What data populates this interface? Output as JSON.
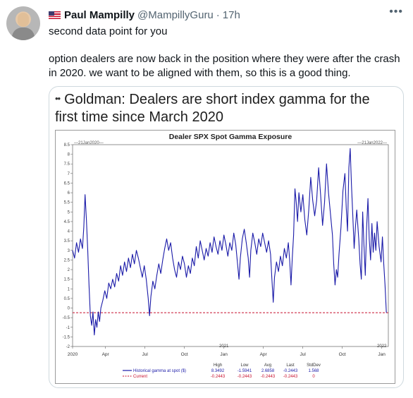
{
  "tweet": {
    "author_name": "Paul Mampilly",
    "author_handle": "@MampillyGuru",
    "separator": "·",
    "time": "17h",
    "more_icon": "more-horizontal-icon",
    "text_line1": "second data point for you",
    "text_body": "option dealers are now back in the position where they were after the crash in 2020. we want to be aligned with them, so this is a good thing."
  },
  "media": {
    "headline_prefix": "••",
    "headline": "Goldman: Dealers are short index gamma for the first time since March 2020"
  },
  "chart_data": {
    "type": "line",
    "title": "Dealer SPX Spot Gamma Exposure",
    "range_label_left": "21Jan2020",
    "range_label_right": "21Jan2022",
    "ylim": [
      -2,
      8.5
    ],
    "yticks": [
      "8.5",
      "8",
      "7.5",
      "7",
      "6.5",
      "6",
      "5.5",
      "5",
      "4.5",
      "4",
      "3.5",
      "3",
      "2.5",
      "2",
      "1.5",
      "1",
      "0.5",
      "0",
      "-0.5",
      "-1",
      "-1.5",
      "-2"
    ],
    "xticks": [
      "2020",
      "Apr",
      "Jul",
      "Oct",
      "Jan",
      "Apr",
      "Jul",
      "Oct",
      "Jan"
    ],
    "xticks_sub": [
      "",
      "",
      "",
      "",
      "2021",
      "",
      "",
      "",
      "2022"
    ],
    "xtick_months": [
      0,
      2.5,
      5.5,
      8.5,
      11.5,
      14.5,
      17.5,
      20.5,
      23.5
    ],
    "x_end_month": 24,
    "series": [
      {
        "name": "Historical gamma at spot ($)",
        "color": "#1a1aa8",
        "points": [
          [
            0,
            3.0
          ],
          [
            0.15,
            2.6
          ],
          [
            0.3,
            3.4
          ],
          [
            0.45,
            2.9
          ],
          [
            0.6,
            3.6
          ],
          [
            0.75,
            3.1
          ],
          [
            0.85,
            4.2
          ],
          [
            0.95,
            5.9
          ],
          [
            1.05,
            4.6
          ],
          [
            1.15,
            3.0
          ],
          [
            1.25,
            1.2
          ],
          [
            1.35,
            -0.4
          ],
          [
            1.45,
            -0.9
          ],
          [
            1.55,
            -0.2
          ],
          [
            1.65,
            -1.4
          ],
          [
            1.75,
            -0.6
          ],
          [
            1.85,
            -1.0
          ],
          [
            1.95,
            -0.2
          ],
          [
            2.05,
            -0.7
          ],
          [
            2.15,
            0.0
          ],
          [
            2.3,
            0.4
          ],
          [
            2.45,
            0.9
          ],
          [
            2.6,
            0.5
          ],
          [
            2.75,
            1.3
          ],
          [
            2.9,
            1.0
          ],
          [
            3.05,
            1.5
          ],
          [
            3.2,
            1.1
          ],
          [
            3.35,
            1.8
          ],
          [
            3.5,
            1.4
          ],
          [
            3.65,
            2.2
          ],
          [
            3.8,
            1.7
          ],
          [
            3.95,
            2.4
          ],
          [
            4.1,
            1.9
          ],
          [
            4.25,
            2.6
          ],
          [
            4.4,
            2.1
          ],
          [
            4.55,
            2.8
          ],
          [
            4.7,
            2.3
          ],
          [
            4.85,
            3.0
          ],
          [
            5.0,
            2.6
          ],
          [
            5.15,
            2.1
          ],
          [
            5.3,
            1.6
          ],
          [
            5.45,
            2.2
          ],
          [
            5.6,
            1.5
          ],
          [
            5.75,
            0.5
          ],
          [
            5.85,
            -0.4
          ],
          [
            5.95,
            0.6
          ],
          [
            6.1,
            1.4
          ],
          [
            6.25,
            1.0
          ],
          [
            6.4,
            1.7
          ],
          [
            6.55,
            2.3
          ],
          [
            6.7,
            1.8
          ],
          [
            6.85,
            2.5
          ],
          [
            7.0,
            3.1
          ],
          [
            7.15,
            3.6
          ],
          [
            7.3,
            3.0
          ],
          [
            7.45,
            3.4
          ],
          [
            7.6,
            2.6
          ],
          [
            7.75,
            2.0
          ],
          [
            7.9,
            1.6
          ],
          [
            8.05,
            2.4
          ],
          [
            8.2,
            2.0
          ],
          [
            8.35,
            2.7
          ],
          [
            8.5,
            2.3
          ],
          [
            8.65,
            1.6
          ],
          [
            8.8,
            2.2
          ],
          [
            8.95,
            1.8
          ],
          [
            9.1,
            2.6
          ],
          [
            9.25,
            2.2
          ],
          [
            9.4,
            3.2
          ],
          [
            9.55,
            2.6
          ],
          [
            9.7,
            3.5
          ],
          [
            9.85,
            3.0
          ],
          [
            10.0,
            2.5
          ],
          [
            10.15,
            3.1
          ],
          [
            10.3,
            2.7
          ],
          [
            10.45,
            3.4
          ],
          [
            10.6,
            2.9
          ],
          [
            10.75,
            3.7
          ],
          [
            10.9,
            3.2
          ],
          [
            11.05,
            2.8
          ],
          [
            11.2,
            3.5
          ],
          [
            11.35,
            3.0
          ],
          [
            11.5,
            3.8
          ],
          [
            11.65,
            3.3
          ],
          [
            11.8,
            2.7
          ],
          [
            11.95,
            3.4
          ],
          [
            12.1,
            3.0
          ],
          [
            12.25,
            3.9
          ],
          [
            12.4,
            3.3
          ],
          [
            12.55,
            2.2
          ],
          [
            12.65,
            1.5
          ],
          [
            12.75,
            2.6
          ],
          [
            12.9,
            3.6
          ],
          [
            13.05,
            4.1
          ],
          [
            13.2,
            3.4
          ],
          [
            13.35,
            2.6
          ],
          [
            13.45,
            1.6
          ],
          [
            13.55,
            3.0
          ],
          [
            13.7,
            3.9
          ],
          [
            13.85,
            3.4
          ],
          [
            14.0,
            2.8
          ],
          [
            14.15,
            3.6
          ],
          [
            14.3,
            3.2
          ],
          [
            14.45,
            3.9
          ],
          [
            14.6,
            3.4
          ],
          [
            14.75,
            2.9
          ],
          [
            14.9,
            3.5
          ],
          [
            15.05,
            2.8
          ],
          [
            15.15,
            1.5
          ],
          [
            15.25,
            0.3
          ],
          [
            15.35,
            1.6
          ],
          [
            15.5,
            2.4
          ],
          [
            15.65,
            1.9
          ],
          [
            15.8,
            2.7
          ],
          [
            15.95,
            2.2
          ],
          [
            16.1,
            3.1
          ],
          [
            16.25,
            2.6
          ],
          [
            16.4,
            3.4
          ],
          [
            16.5,
            2.5
          ],
          [
            16.6,
            1.2
          ],
          [
            16.7,
            2.6
          ],
          [
            16.8,
            3.8
          ],
          [
            16.9,
            6.2
          ],
          [
            17.0,
            5.5
          ],
          [
            17.1,
            4.5
          ],
          [
            17.2,
            6.0
          ],
          [
            17.35,
            5.0
          ],
          [
            17.5,
            5.9
          ],
          [
            17.65,
            4.6
          ],
          [
            17.8,
            3.8
          ],
          [
            17.95,
            5.1
          ],
          [
            18.1,
            6.8
          ],
          [
            18.25,
            5.6
          ],
          [
            18.4,
            4.8
          ],
          [
            18.55,
            5.6
          ],
          [
            18.7,
            7.3
          ],
          [
            18.85,
            5.9
          ],
          [
            19.0,
            4.3
          ],
          [
            19.15,
            5.5
          ],
          [
            19.3,
            7.5
          ],
          [
            19.45,
            6.0
          ],
          [
            19.6,
            4.9
          ],
          [
            19.75,
            3.8
          ],
          [
            19.85,
            2.3
          ],
          [
            19.95,
            1.2
          ],
          [
            20.05,
            2.0
          ],
          [
            20.15,
            1.6
          ],
          [
            20.25,
            2.8
          ],
          [
            20.4,
            4.2
          ],
          [
            20.55,
            6.1
          ],
          [
            20.7,
            7.0
          ],
          [
            20.8,
            5.2
          ],
          [
            20.9,
            4.0
          ],
          [
            21.0,
            7.3
          ],
          [
            21.1,
            8.3
          ],
          [
            21.2,
            6.4
          ],
          [
            21.3,
            4.8
          ],
          [
            21.4,
            3.1
          ],
          [
            21.5,
            4.2
          ],
          [
            21.6,
            5.1
          ],
          [
            21.75,
            3.6
          ],
          [
            21.85,
            2.3
          ],
          [
            21.95,
            1.5
          ],
          [
            22.05,
            5.0
          ],
          [
            22.15,
            3.2
          ],
          [
            22.25,
            1.7
          ],
          [
            22.35,
            4.2
          ],
          [
            22.45,
            5.7
          ],
          [
            22.55,
            3.6
          ],
          [
            22.65,
            2.5
          ],
          [
            22.75,
            4.4
          ],
          [
            22.85,
            2.9
          ],
          [
            22.95,
            3.9
          ],
          [
            23.05,
            3.0
          ],
          [
            23.15,
            4.5
          ],
          [
            23.3,
            3.2
          ],
          [
            23.45,
            2.4
          ],
          [
            23.55,
            3.7
          ],
          [
            23.65,
            2.3
          ],
          [
            23.75,
            1.2
          ],
          [
            23.85,
            -0.24
          ]
        ]
      },
      {
        "name": "Current",
        "color": "#c8102e",
        "value": -0.2443
      }
    ],
    "stats": {
      "headers": [
        "High",
        "Low",
        "Avg",
        "Last",
        "StdDev"
      ],
      "rows": [
        {
          "label": "Historical gamma at spot ($)",
          "values": [
            "8.3492",
            "-1.5941",
            "2.6858",
            "-0.2443",
            "1.568"
          ]
        },
        {
          "label": "Current",
          "values": [
            "-0.2443",
            "-0.2443",
            "-0.2443",
            "-0.2443",
            "0"
          ]
        }
      ]
    }
  }
}
